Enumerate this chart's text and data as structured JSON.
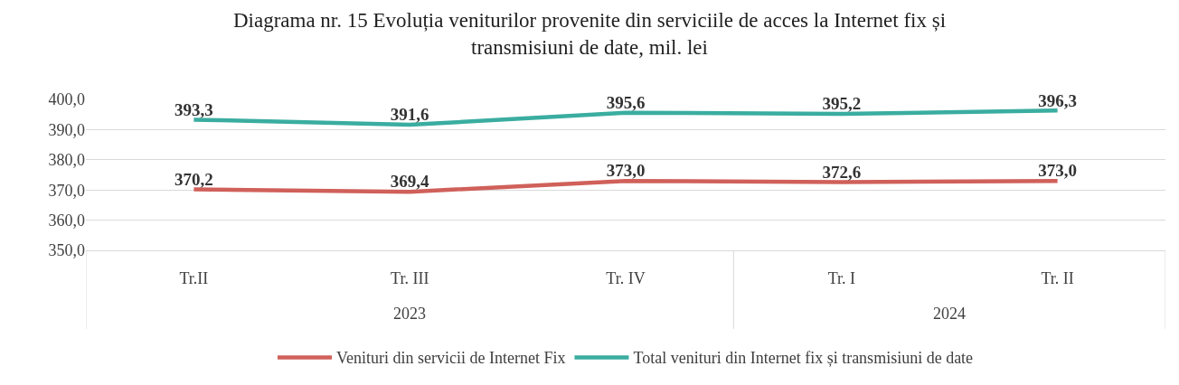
{
  "chart_data": {
    "type": "line",
    "title": "Diagrama nr. 15 Evoluția veniturilor provenite din serviciile de acces la Internet fix și transmisiuni de date, mil. lei",
    "categories": [
      "Tr.II",
      "Tr. III",
      "Tr. IV",
      "Tr. I",
      "Tr. II"
    ],
    "series": [
      {
        "name": "Venituri din servicii de Internet Fix",
        "color": "#d0605a",
        "values": [
          370.2,
          369.4,
          373.0,
          372.6,
          373.0
        ],
        "value_labels": [
          "370,2",
          "369,4",
          "373,0",
          "372,6",
          "373,0"
        ]
      },
      {
        "name": "Total venituri din Internet fix și transmisiuni de date",
        "color": "#3aada0",
        "values": [
          393.3,
          391.6,
          395.6,
          395.2,
          396.3
        ],
        "value_labels": [
          "393,3",
          "391,6",
          "395,6",
          "395,2",
          "396,3"
        ]
      }
    ],
    "annotations": [
      "2023",
      "2024"
    ],
    "ylim": [
      350,
      400
    ],
    "yticks": [
      {
        "value": 350,
        "label": "350,0"
      },
      {
        "value": 360,
        "label": "360,0"
      },
      {
        "value": 370,
        "label": "370,0"
      },
      {
        "value": 380,
        "label": "380,0"
      },
      {
        "value": 390,
        "label": "390,0"
      },
      {
        "value": 400,
        "label": "400,0"
      }
    ],
    "grid": "y",
    "legend": "bottom",
    "marker": "none",
    "line_style": "solid"
  }
}
